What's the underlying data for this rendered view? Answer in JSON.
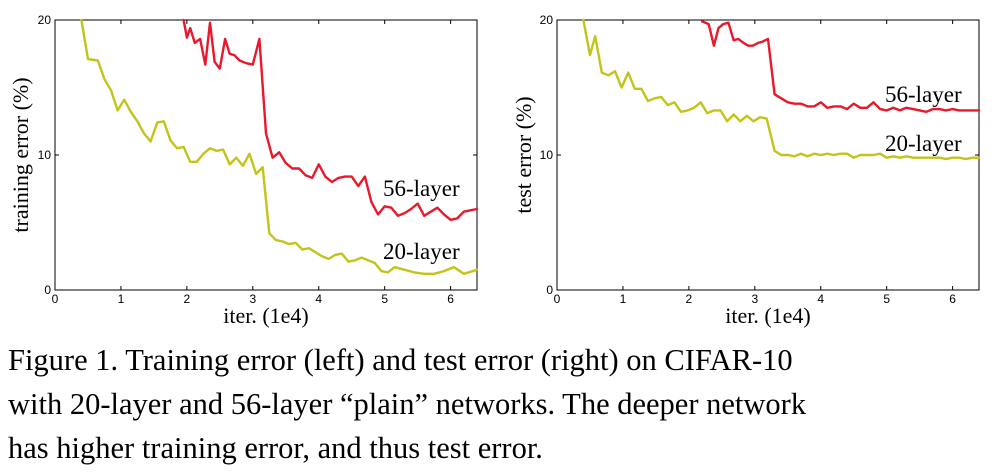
{
  "chart_data": [
    {
      "type": "line",
      "xlabel": "iter. (1e4)",
      "ylabel": "training error (%)",
      "xlim": [
        0,
        6.4
      ],
      "ylim": [
        0,
        20
      ],
      "xticks": [
        "0",
        "1",
        "2",
        "3",
        "4",
        "5",
        "6"
      ],
      "yticks": [
        "0",
        "10",
        "20"
      ],
      "grid": false,
      "series": [
        {
          "name": "56-layer",
          "color": "#e8192c",
          "x": [
            1.95,
            2.0,
            2.05,
            2.12,
            2.2,
            2.28,
            2.35,
            2.42,
            2.5,
            2.58,
            2.65,
            2.72,
            2.8,
            2.9,
            3.0,
            3.1,
            3.2,
            3.3,
            3.4,
            3.5,
            3.6,
            3.7,
            3.8,
            3.9,
            4.0,
            4.1,
            4.2,
            4.3,
            4.4,
            4.5,
            4.6,
            4.7,
            4.8,
            4.9,
            5.0,
            5.1,
            5.2,
            5.3,
            5.4,
            5.5,
            5.6,
            5.7,
            5.8,
            5.9,
            6.0,
            6.1,
            6.2,
            6.3,
            6.4
          ],
          "y": [
            20.0,
            18.7,
            19.4,
            18.3,
            18.6,
            16.7,
            19.8,
            16.9,
            16.4,
            18.6,
            17.5,
            17.4,
            17.0,
            16.8,
            16.7,
            18.6,
            11.6,
            9.8,
            10.2,
            9.4,
            9.0,
            9.0,
            8.5,
            8.3,
            9.3,
            8.4,
            8.0,
            8.3,
            8.4,
            8.4,
            7.7,
            8.4,
            6.5,
            5.6,
            6.2,
            6.1,
            5.5,
            5.7,
            6.0,
            6.4,
            5.5,
            5.8,
            6.1,
            5.6,
            5.2,
            5.3,
            5.8,
            5.9,
            6.0
          ]
        },
        {
          "name": "20-layer",
          "color": "#c3c41a",
          "x": [
            0.4,
            0.5,
            0.65,
            0.75,
            0.85,
            0.95,
            1.05,
            1.15,
            1.25,
            1.35,
            1.45,
            1.55,
            1.65,
            1.75,
            1.85,
            1.95,
            2.05,
            2.15,
            2.25,
            2.35,
            2.45,
            2.55,
            2.65,
            2.75,
            2.85,
            2.95,
            3.05,
            3.15,
            3.25,
            3.35,
            3.45,
            3.55,
            3.65,
            3.75,
            3.85,
            3.95,
            4.05,
            4.15,
            4.25,
            4.35,
            4.45,
            4.55,
            4.65,
            4.75,
            4.85,
            4.95,
            5.05,
            5.15,
            5.3,
            5.45,
            5.6,
            5.75,
            5.9,
            6.05,
            6.2,
            6.4
          ],
          "y": [
            20.0,
            17.1,
            17.0,
            15.6,
            14.8,
            13.3,
            14.1,
            13.2,
            12.5,
            11.6,
            11.0,
            12.4,
            12.5,
            11.1,
            10.5,
            10.6,
            9.5,
            9.5,
            10.1,
            10.5,
            10.3,
            10.4,
            9.3,
            9.8,
            9.2,
            10.1,
            8.6,
            9.1,
            4.2,
            3.7,
            3.6,
            3.4,
            3.5,
            3.0,
            3.1,
            2.8,
            2.5,
            2.3,
            2.6,
            2.7,
            2.1,
            2.2,
            2.4,
            2.2,
            2.0,
            1.4,
            1.3,
            1.7,
            1.5,
            1.3,
            1.2,
            1.2,
            1.4,
            1.7,
            1.2,
            1.5
          ]
        }
      ]
    },
    {
      "type": "line",
      "xlabel": "iter. (1e4)",
      "ylabel": "test error (%)",
      "xlim": [
        0,
        6.4
      ],
      "ylim": [
        0,
        20
      ],
      "xticks": [
        "0",
        "1",
        "2",
        "3",
        "4",
        "5",
        "6"
      ],
      "yticks": [
        "0",
        "10",
        "20"
      ],
      "grid": false,
      "series": [
        {
          "name": "56-layer",
          "color": "#e8192c",
          "x": [
            2.2,
            2.3,
            2.38,
            2.45,
            2.52,
            2.6,
            2.68,
            2.75,
            2.83,
            2.9,
            2.97,
            3.05,
            3.12,
            3.2,
            3.3,
            3.4,
            3.5,
            3.6,
            3.7,
            3.8,
            3.9,
            4.0,
            4.1,
            4.2,
            4.3,
            4.4,
            4.5,
            4.6,
            4.7,
            4.8,
            4.9,
            5.0,
            5.1,
            5.2,
            5.3,
            5.4,
            5.5,
            5.6,
            5.7,
            5.8,
            5.9,
            6.0,
            6.1,
            6.2,
            6.3,
            6.4
          ],
          "y": [
            19.9,
            19.7,
            18.1,
            19.4,
            19.7,
            19.8,
            18.5,
            18.6,
            18.3,
            18.1,
            18.1,
            18.3,
            18.4,
            18.6,
            14.5,
            14.2,
            13.9,
            13.8,
            13.8,
            13.6,
            13.6,
            13.9,
            13.5,
            13.6,
            13.6,
            13.4,
            13.8,
            13.5,
            13.5,
            13.9,
            13.4,
            13.3,
            13.5,
            13.3,
            13.5,
            13.4,
            13.3,
            13.2,
            13.4,
            13.4,
            13.3,
            13.4,
            13.3,
            13.3,
            13.3,
            13.3
          ]
        },
        {
          "name": "20-layer",
          "color": "#c3c41a",
          "x": [
            0.4,
            0.5,
            0.58,
            0.68,
            0.78,
            0.88,
            0.98,
            1.08,
            1.18,
            1.28,
            1.38,
            1.48,
            1.58,
            1.68,
            1.78,
            1.88,
            1.98,
            2.08,
            2.18,
            2.28,
            2.38,
            2.48,
            2.58,
            2.68,
            2.78,
            2.88,
            2.98,
            3.08,
            3.18,
            3.3,
            3.4,
            3.5,
            3.6,
            3.7,
            3.8,
            3.9,
            4.0,
            4.1,
            4.2,
            4.3,
            4.4,
            4.5,
            4.6,
            4.7,
            4.8,
            4.9,
            5.0,
            5.1,
            5.2,
            5.3,
            5.4,
            5.5,
            5.6,
            5.7,
            5.8,
            5.9,
            6.0,
            6.1,
            6.2,
            6.3,
            6.4
          ],
          "y": [
            20.0,
            17.4,
            18.8,
            16.1,
            15.9,
            16.2,
            15.0,
            16.1,
            14.9,
            14.9,
            14.0,
            14.2,
            14.3,
            13.7,
            13.9,
            13.2,
            13.3,
            13.5,
            13.9,
            13.1,
            13.3,
            13.3,
            12.5,
            13.0,
            12.5,
            12.9,
            12.5,
            12.8,
            12.7,
            10.3,
            10.0,
            10.0,
            9.9,
            10.1,
            9.9,
            10.1,
            10.0,
            10.1,
            10.0,
            10.1,
            10.1,
            9.8,
            10.0,
            10.0,
            10.0,
            10.1,
            9.8,
            9.9,
            9.8,
            9.9,
            9.8,
            9.8,
            9.8,
            9.8,
            9.8,
            9.7,
            9.8,
            9.8,
            9.7,
            9.8,
            9.8
          ]
        }
      ]
    }
  ],
  "caption": {
    "line1": "Figure 1. Training error (left) and test error (right) on CIFAR-10",
    "line2": "with 20-layer and 56-layer “plain” networks. The deeper network",
    "line3": "has higher training error, and thus test error."
  }
}
